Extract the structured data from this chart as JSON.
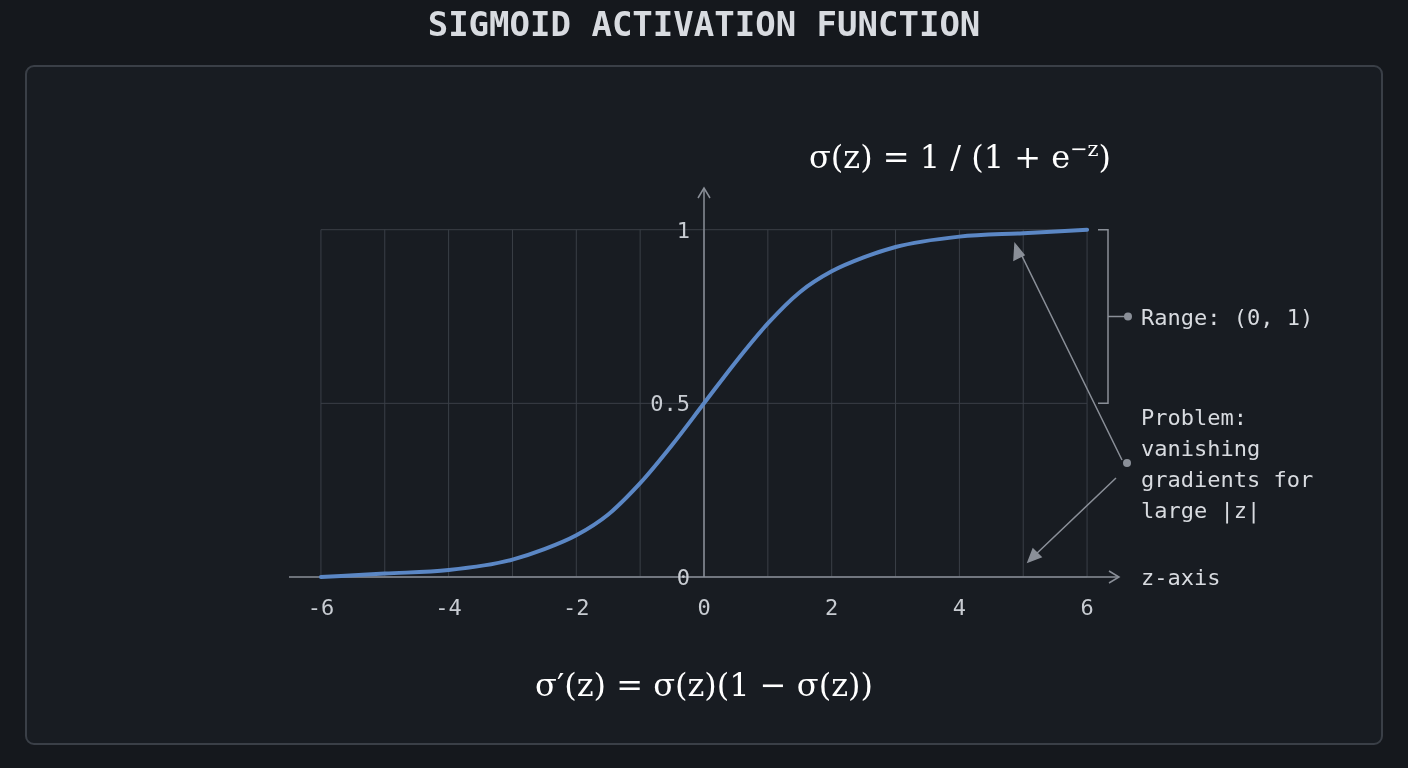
{
  "chart_data": {
    "type": "line",
    "title": "SIGMOID ACTIVATION FUNCTION",
    "xlabel": "z-axis",
    "x": [
      -6,
      -5,
      -4,
      -3,
      -2.5,
      -2,
      -1.5,
      -1,
      -0.5,
      0,
      0.5,
      1,
      1.5,
      2,
      2.5,
      3,
      4,
      5,
      6
    ],
    "series": [
      {
        "color": "#5b87c5",
        "values": [
          0,
          0.01,
          0.02,
          0.05,
          0.08,
          0.12,
          0.18,
          0.27,
          0.38,
          0.5,
          0.62,
          0.73,
          0.82,
          0.88,
          0.92,
          0.95,
          0.98,
          0.99,
          1
        ]
      }
    ],
    "xlim": [
      -6.5,
      6.5
    ],
    "ylim": [
      0,
      1.12
    ],
    "xticks": [
      -6,
      {
        "value": -5,
        "label": null
      },
      -4,
      {
        "value": -3,
        "label": null
      },
      -2,
      {
        "value": -1,
        "label": null
      },
      0,
      {
        "value": 1,
        "label": null
      },
      2,
      {
        "value": 3,
        "label": null
      },
      4,
      {
        "value": 5,
        "label": null
      },
      6
    ],
    "yticks": [
      0,
      0.5,
      1
    ],
    "grid": true,
    "marker": "none",
    "line_style": "solid",
    "annotations": [
      "σ(z) = 1 / (1 + e$^{−z}$)",
      "σ′(z) = σ(z)(1 − σ(z))",
      "Range: (0, 1)",
      "Problem: vanishing gradients for large |z|"
    ]
  }
}
